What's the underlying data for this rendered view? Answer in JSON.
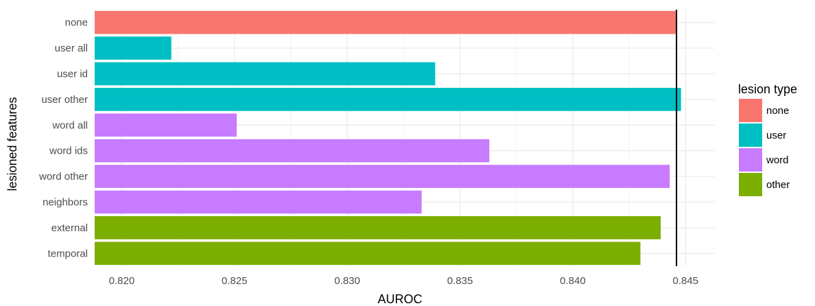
{
  "chart_data": {
    "type": "bar",
    "orientation": "horizontal",
    "xlabel": "AUROC",
    "ylabel": "lesioned features",
    "xlim": [
      0.8188,
      0.8463
    ],
    "x_ticks": [
      0.82,
      0.825,
      0.83,
      0.835,
      0.84,
      0.845
    ],
    "x_tick_labels": [
      "0.820",
      "0.825",
      "0.830",
      "0.835",
      "0.840",
      "0.845"
    ],
    "grid": true,
    "reference_line": {
      "x": 0.8446,
      "color": "#000000"
    },
    "categories": [
      "none",
      "user all",
      "user id",
      "user other",
      "word all",
      "word ids",
      "word other",
      "neighbors",
      "external",
      "temporal"
    ],
    "values": [
      0.8446,
      0.8222,
      0.8339,
      0.8448,
      0.8251,
      0.8363,
      0.8443,
      0.8333,
      0.8439,
      0.843
    ],
    "groups": [
      "none",
      "user",
      "user",
      "user",
      "word",
      "word",
      "word",
      "word",
      "other",
      "other"
    ],
    "legend": {
      "title": "lesion type",
      "placement": "right",
      "items": [
        {
          "label": "none",
          "color": "#F8766D"
        },
        {
          "label": "user",
          "color": "#00BFC4"
        },
        {
          "label": "word",
          "color": "#C77CFF"
        },
        {
          "label": "other",
          "color": "#7CAE00"
        }
      ]
    }
  }
}
